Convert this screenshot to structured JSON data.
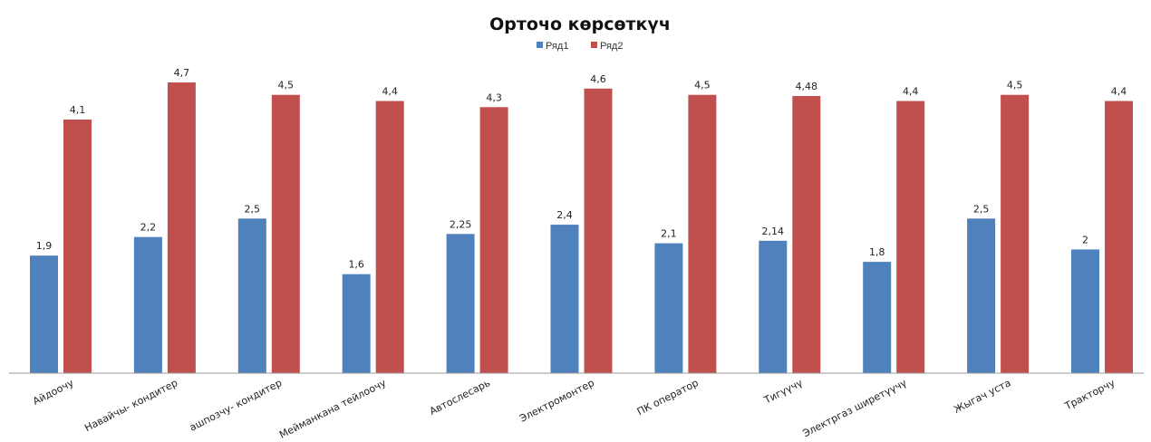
{
  "chart_data": {
    "type": "bar",
    "title": "Орточо көрсөткүч",
    "categories": [
      "Айдоочу",
      "Навайчы- кондитер",
      "ашпозчу- кондитер",
      "Мейманкана тейлоочу",
      "Автослесарь",
      "Электромонтер",
      "ПК оператор",
      "Тигүүчү",
      "Электргаз ширетүүчү",
      "Жыгач уста",
      "Тракторчу"
    ],
    "series": [
      {
        "name": "Ряд1",
        "color": "#4F81BD",
        "values": [
          1.9,
          2.2,
          2.5,
          1.6,
          2.25,
          2.4,
          2.1,
          2.14,
          1.8,
          2.5,
          2
        ],
        "labels": [
          "1,9",
          "2,2",
          "2,5",
          "1,6",
          "2,25",
          "2,4",
          "2,1",
          "2,14",
          "1,8",
          "2,5",
          "2"
        ]
      },
      {
        "name": "Ряд2",
        "color": "#C0504D",
        "values": [
          4.1,
          4.7,
          4.5,
          4.4,
          4.3,
          4.6,
          4.5,
          4.48,
          4.4,
          4.5,
          4.4
        ],
        "labels": [
          "4,1",
          "4,7",
          "4,5",
          "4,4",
          "4,3",
          "4,6",
          "4,5",
          "4,48",
          "4,4",
          "4,5",
          "4,4"
        ]
      }
    ],
    "ylim": [
      0,
      5
    ],
    "grid": false,
    "legend": "top-center"
  }
}
